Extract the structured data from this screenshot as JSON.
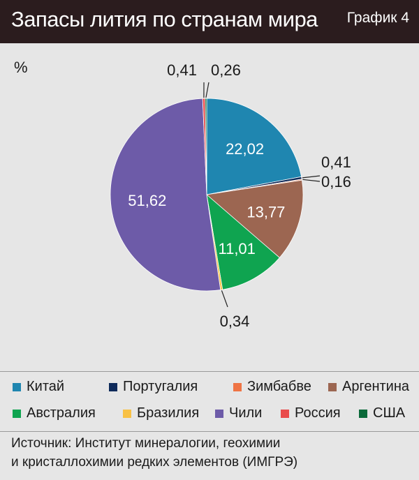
{
  "header": {
    "title": "Запасы лития по странам мира",
    "chart_number": "График 4"
  },
  "unit_label": "%",
  "source": {
    "line1": "Источник: Институт минералогии, геохимии",
    "line2": "и кристаллохимии редких элементов (ИМГРЭ)"
  },
  "chart_data": {
    "type": "pie",
    "title": "Запасы лития по странам мира",
    "unit": "%",
    "start": "12 o'clock",
    "direction": "clockwise",
    "legend_placement": "bottom",
    "slices": [
      {
        "name": "Китай",
        "value": 22.02,
        "label": "22,02",
        "color": "#1f86b0"
      },
      {
        "name": "Португалия",
        "value": 0.41,
        "label": "0,41",
        "color": "#0e2a5a"
      },
      {
        "name": "Зимбабве",
        "value": 0.16,
        "label": "0,16",
        "color": "#ef7444"
      },
      {
        "name": "Аргентина",
        "value": 13.77,
        "label": "13,77",
        "color": "#9c6651"
      },
      {
        "name": "Австралия",
        "value": 11.01,
        "label": "11,01",
        "color": "#0fa450"
      },
      {
        "name": "Бразилия",
        "value": 0.34,
        "label": "0,34",
        "color": "#f8c145"
      },
      {
        "name": "Чили",
        "value": 51.62,
        "label": "51,62",
        "color": "#6d5ba8"
      },
      {
        "name": "Россия",
        "value": 0.41,
        "label": "0,41",
        "color": "#e94b4b"
      },
      {
        "name": "США",
        "value": 0.26,
        "label": "0,26",
        "color": "#0a6a3a"
      }
    ]
  }
}
